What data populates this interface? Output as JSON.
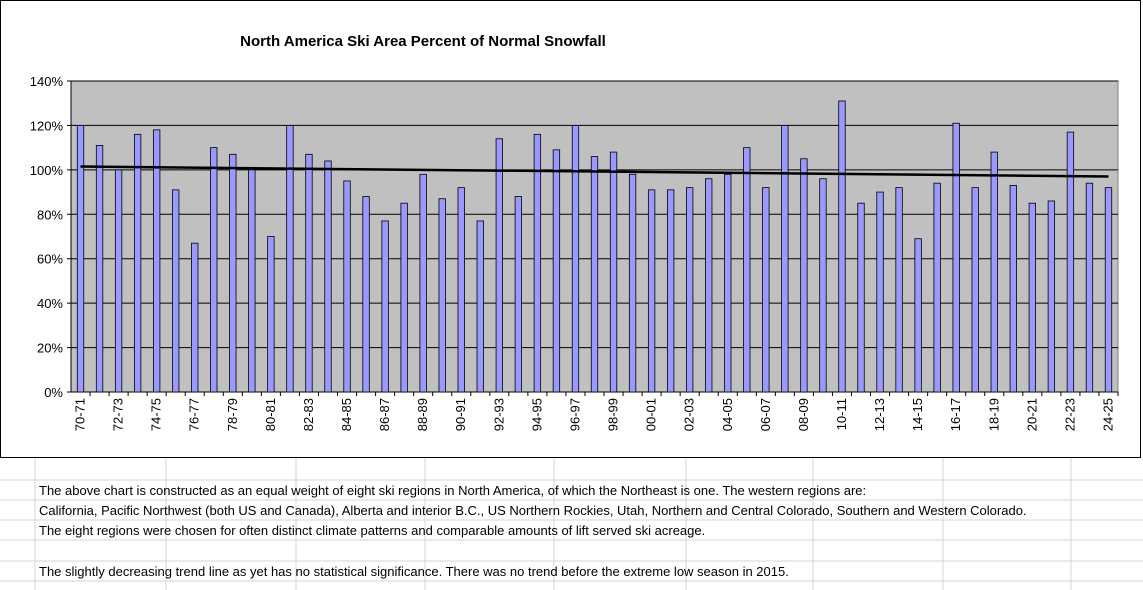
{
  "chart_data": {
    "type": "bar",
    "title": "North America Ski Area Percent of Normal Snowfall",
    "xlabel": "",
    "ylabel": "",
    "ylim": [
      0,
      140
    ],
    "yticks": [
      "0%",
      "20%",
      "40%",
      "60%",
      "80%",
      "100%",
      "120%",
      "140%"
    ],
    "grid": true,
    "legend": "none",
    "categories": [
      "70-71",
      "71-72",
      "72-73",
      "73-74",
      "74-75",
      "75-76",
      "76-77",
      "77-78",
      "78-79",
      "79-80",
      "80-81",
      "81-82",
      "82-83",
      "83-84",
      "84-85",
      "85-86",
      "86-87",
      "87-88",
      "88-89",
      "89-90",
      "90-91",
      "91-92",
      "92-93",
      "93-94",
      "94-95",
      "95-96",
      "96-97",
      "97-98",
      "98-99",
      "99-00",
      "00-01",
      "01-02",
      "02-03",
      "03-04",
      "04-05",
      "05-06",
      "06-07",
      "07-08",
      "08-09",
      "09-10",
      "10-11",
      "11-12",
      "12-13",
      "13-14",
      "14-15",
      "15-16",
      "16-17",
      "17-18",
      "18-19",
      "19-20",
      "20-21",
      "21-22",
      "22-23",
      "23-24",
      "24-25"
    ],
    "tick_labels": [
      "70-71",
      "72-73",
      "74-75",
      "76-77",
      "78-79",
      "80-81",
      "82-83",
      "84-85",
      "86-87",
      "88-89",
      "90-91",
      "92-93",
      "94-95",
      "96-97",
      "98-99",
      "00-01",
      "02-03",
      "04-05",
      "06-07",
      "08-09",
      "10-11",
      "12-13",
      "14-15",
      "16-17",
      "18-19",
      "20-21",
      "22-23",
      "24-25"
    ],
    "series": [
      {
        "name": "Percent of Normal Snowfall",
        "values": [
          120,
          111,
          100,
          116,
          118,
          91,
          67,
          110,
          107,
          100,
          70,
          120,
          107,
          104,
          95,
          88,
          77,
          85,
          98,
          87,
          92,
          77,
          114,
          88,
          116,
          109,
          120,
          106,
          108,
          98,
          91,
          91,
          92,
          96,
          98,
          110,
          92,
          120,
          105,
          96,
          131,
          85,
          90,
          92,
          69,
          94,
          121,
          92,
          108,
          93,
          85,
          86,
          117,
          94,
          92
        ]
      }
    ],
    "trendline": {
      "name": "Linear trend",
      "start": 101.5,
      "end": 97.0
    },
    "colors": {
      "bar": "#9999ff",
      "plot_background": "#c0c0c0",
      "trend": "#000000",
      "sheet_grid": "#d4d4d4"
    }
  },
  "notes": [
    "The above chart is constructed as an equal weight of eight ski regions in North America, of which the Northeast is one.   The western regions are:",
    "California, Pacific Northwest (both US and Canada), Alberta and interior B.C., US Northern Rockies, Utah, Northern and Central Colorado, Southern and Western Colorado.",
    "The eight regions were chosen for often distinct climate patterns and comparable amounts of lift served ski acreage.",
    "",
    "The slightly decreasing trend line as yet has no statistical significance.   There was no trend before the extreme low season in 2015."
  ]
}
